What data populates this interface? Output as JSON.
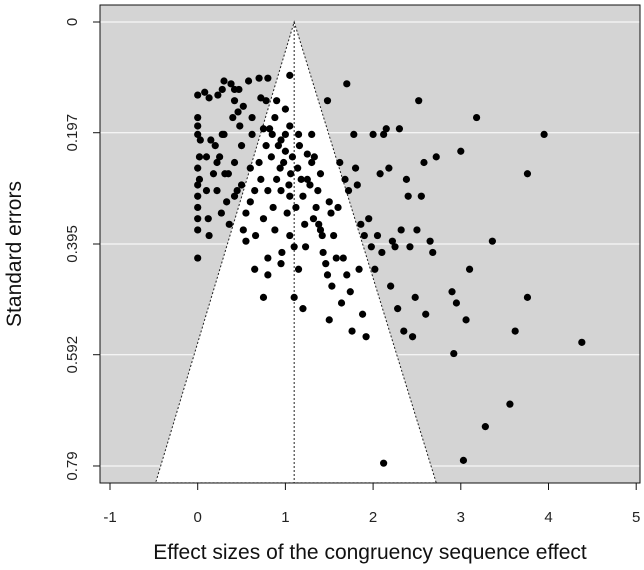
{
  "chart_data": {
    "type": "scatter",
    "subtype": "funnel-plot",
    "title": "",
    "xlabel": "Effect sizes of the congruency sequence effect",
    "ylabel": "Standard errors",
    "xlim": [
      -1.1,
      5.1
    ],
    "ylim": [
      0.82,
      0
    ],
    "x_ticks": [
      -1,
      0,
      1,
      2,
      3,
      4,
      5
    ],
    "x_tick_labels": [
      "-1",
      "0",
      "1",
      "2",
      "3",
      "4",
      "5"
    ],
    "y_ticks": [
      0,
      0.197,
      0.395,
      0.592,
      0.79
    ],
    "y_tick_labels": [
      "0",
      "0.197",
      "0.395",
      "0.592",
      "0.79"
    ],
    "grid": "horizontal",
    "funnel": {
      "apex_x": 1.1,
      "apex_se": 0,
      "left_at_max_se": -0.48,
      "right_at_max_se": 2.72,
      "max_se": 0.82
    },
    "mean_effect": 1.1,
    "colors": {
      "panel": "#d4d4d4",
      "funnel": "#ffffff",
      "points": "#000000",
      "gridline": "#ffffff"
    },
    "points": [
      [
        0.0,
        0.13
      ],
      [
        0.08,
        0.125
      ],
      [
        0.13,
        0.135
      ],
      [
        0.23,
        0.13
      ],
      [
        0.28,
        0.12
      ],
      [
        0.3,
        0.105
      ],
      [
        0.38,
        0.11
      ],
      [
        0.42,
        0.12
      ],
      [
        0.47,
        0.12
      ],
      [
        0.58,
        0.105
      ],
      [
        0.7,
        0.1
      ],
      [
        0.8,
        0.1
      ],
      [
        0.72,
        0.135
      ],
      [
        0.78,
        0.14
      ],
      [
        0.9,
        0.14
      ],
      [
        1.05,
        0.095
      ],
      [
        1.7,
        0.11
      ],
      [
        1.48,
        0.14
      ],
      [
        0.0,
        0.17
      ],
      [
        0.0,
        0.185
      ],
      [
        0.0,
        0.2
      ],
      [
        0.03,
        0.21
      ],
      [
        0.02,
        0.24
      ],
      [
        0.0,
        0.26
      ],
      [
        0.02,
        0.28
      ],
      [
        0.0,
        0.29
      ],
      [
        0.0,
        0.31
      ],
      [
        0.0,
        0.33
      ],
      [
        0.0,
        0.35
      ],
      [
        0.0,
        0.37
      ],
      [
        0.0,
        0.42
      ],
      [
        0.1,
        0.3
      ],
      [
        0.12,
        0.35
      ],
      [
        0.13,
        0.38
      ],
      [
        0.2,
        0.22
      ],
      [
        0.22,
        0.25
      ],
      [
        0.22,
        0.3
      ],
      [
        0.27,
        0.34
      ],
      [
        0.3,
        0.2
      ],
      [
        0.31,
        0.27
      ],
      [
        0.33,
        0.32
      ],
      [
        0.36,
        0.36
      ],
      [
        0.4,
        0.17
      ],
      [
        0.42,
        0.25
      ],
      [
        0.45,
        0.3
      ],
      [
        0.48,
        0.185
      ],
      [
        0.5,
        0.22
      ],
      [
        0.5,
        0.29
      ],
      [
        0.52,
        0.37
      ],
      [
        0.55,
        0.34
      ],
      [
        0.6,
        0.26
      ],
      [
        0.6,
        0.32
      ],
      [
        0.62,
        0.2
      ],
      [
        0.65,
        0.3
      ],
      [
        0.66,
        0.38
      ],
      [
        0.7,
        0.25
      ],
      [
        0.72,
        0.28
      ],
      [
        0.75,
        0.35
      ],
      [
        0.78,
        0.22
      ],
      [
        0.8,
        0.3
      ],
      [
        0.82,
        0.19
      ],
      [
        0.84,
        0.24
      ],
      [
        0.86,
        0.33
      ],
      [
        0.88,
        0.37
      ],
      [
        0.9,
        0.28
      ],
      [
        0.92,
        0.22
      ],
      [
        0.94,
        0.26
      ],
      [
        0.95,
        0.3
      ],
      [
        0.96,
        0.41
      ],
      [
        0.98,
        0.25
      ],
      [
        1.0,
        0.2
      ],
      [
        1.0,
        0.23
      ],
      [
        1.02,
        0.34
      ],
      [
        1.04,
        0.29
      ],
      [
        1.05,
        0.31
      ],
      [
        1.05,
        0.38
      ],
      [
        1.06,
        0.27
      ],
      [
        1.08,
        0.24
      ],
      [
        1.1,
        0.4
      ],
      [
        1.12,
        0.33
      ],
      [
        1.14,
        0.26
      ],
      [
        1.16,
        0.22
      ],
      [
        1.18,
        0.28
      ],
      [
        1.2,
        0.31
      ],
      [
        1.22,
        0.36
      ],
      [
        1.23,
        0.4
      ],
      [
        1.25,
        0.28
      ],
      [
        1.28,
        0.29
      ],
      [
        1.3,
        0.2
      ],
      [
        1.32,
        0.35
      ],
      [
        1.33,
        0.24
      ],
      [
        1.35,
        0.33
      ],
      [
        1.37,
        0.3
      ],
      [
        1.38,
        0.36
      ],
      [
        1.4,
        0.27
      ],
      [
        1.42,
        0.38
      ],
      [
        1.43,
        0.41
      ],
      [
        1.46,
        0.43
      ],
      [
        1.48,
        0.45
      ],
      [
        1.5,
        0.32
      ],
      [
        1.52,
        0.34
      ],
      [
        1.53,
        0.47
      ],
      [
        1.55,
        0.38
      ],
      [
        1.58,
        0.42
      ],
      [
        1.6,
        0.33
      ],
      [
        1.62,
        0.25
      ],
      [
        1.64,
        0.5
      ],
      [
        1.66,
        0.42
      ],
      [
        1.68,
        0.28
      ],
      [
        1.7,
        0.45
      ],
      [
        1.72,
        0.3
      ],
      [
        1.74,
        0.48
      ],
      [
        1.76,
        0.55
      ],
      [
        1.78,
        0.2
      ],
      [
        1.8,
        0.26
      ],
      [
        1.82,
        0.29
      ],
      [
        1.84,
        0.44
      ],
      [
        1.86,
        0.36
      ],
      [
        1.88,
        0.52
      ],
      [
        1.9,
        0.38
      ],
      [
        1.92,
        0.56
      ],
      [
        1.95,
        0.35
      ],
      [
        1.98,
        0.4
      ],
      [
        2.0,
        0.2
      ],
      [
        2.02,
        0.44
      ],
      [
        2.05,
        0.38
      ],
      [
        2.08,
        0.27
      ],
      [
        2.1,
        0.41
      ],
      [
        2.12,
        0.2
      ],
      [
        2.15,
        0.19
      ],
      [
        2.18,
        0.26
      ],
      [
        2.2,
        0.47
      ],
      [
        2.22,
        0.39
      ],
      [
        2.25,
        0.4
      ],
      [
        2.3,
        0.19
      ],
      [
        2.32,
        0.37
      ],
      [
        2.35,
        0.55
      ],
      [
        2.38,
        0.28
      ],
      [
        2.4,
        0.31
      ],
      [
        2.42,
        0.4
      ],
      [
        2.45,
        0.56
      ],
      [
        2.48,
        0.49
      ],
      [
        2.5,
        0.37
      ],
      [
        2.52,
        0.14
      ],
      [
        2.55,
        0.31
      ],
      [
        2.58,
        0.25
      ],
      [
        2.6,
        0.52
      ],
      [
        2.65,
        0.39
      ],
      [
        2.68,
        0.41
      ],
      [
        2.72,
        0.24
      ],
      [
        2.9,
        0.48
      ],
      [
        2.92,
        0.59
      ],
      [
        2.95,
        0.5
      ],
      [
        3.0,
        0.23
      ],
      [
        3.06,
        0.53
      ],
      [
        3.1,
        0.44
      ],
      [
        3.18,
        0.17
      ],
      [
        3.28,
        0.72
      ],
      [
        3.36,
        0.39
      ],
      [
        3.56,
        0.68
      ],
      [
        3.62,
        0.55
      ],
      [
        3.76,
        0.27
      ],
      [
        3.76,
        0.49
      ],
      [
        3.95,
        0.2
      ],
      [
        4.38,
        0.57
      ],
      [
        3.03,
        0.78
      ],
      [
        2.12,
        0.785
      ],
      [
        0.42,
        0.14
      ],
      [
        0.46,
        0.16
      ],
      [
        0.52,
        0.15
      ],
      [
        0.62,
        0.17
      ],
      [
        0.75,
        0.19
      ],
      [
        0.85,
        0.2
      ],
      [
        0.95,
        0.21
      ],
      [
        1.0,
        0.155
      ],
      [
        0.88,
        0.17
      ],
      [
        1.05,
        0.185
      ],
      [
        1.15,
        0.2
      ],
      [
        1.25,
        0.235
      ],
      [
        1.3,
        0.25
      ],
      [
        0.55,
        0.39
      ],
      [
        0.8,
        0.42
      ],
      [
        0.95,
        0.43
      ],
      [
        0.65,
        0.44
      ],
      [
        0.8,
        0.45
      ],
      [
        0.75,
        0.49
      ],
      [
        1.1,
        0.49
      ],
      [
        1.15,
        0.44
      ],
      [
        1.2,
        0.51
      ],
      [
        1.5,
        0.53
      ],
      [
        2.28,
        0.51
      ],
      [
        1.4,
        0.37
      ],
      [
        0.1,
        0.24
      ],
      [
        0.15,
        0.21
      ],
      [
        0.18,
        0.27
      ],
      [
        0.25,
        0.24
      ],
      [
        0.28,
        0.2
      ],
      [
        0.35,
        0.27
      ],
      [
        0.42,
        0.31
      ]
    ]
  }
}
